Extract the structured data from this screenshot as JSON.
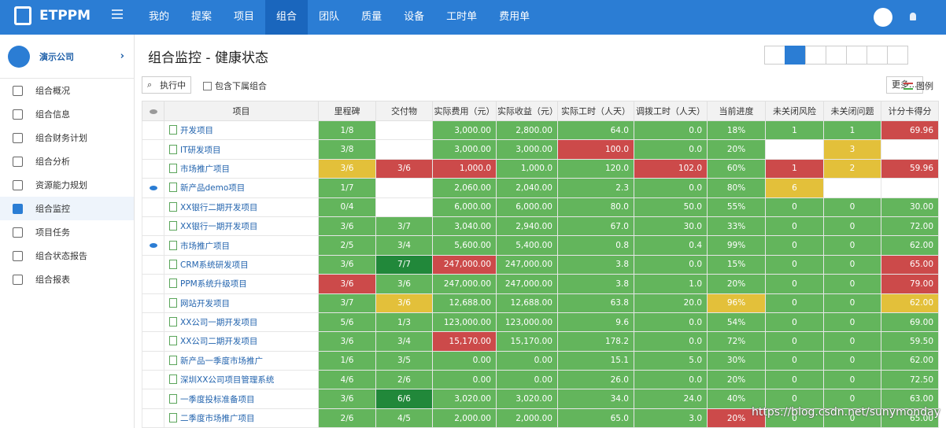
{
  "nav": {
    "logo": "ETPPM",
    "menu": [
      "我的",
      "提案",
      "项目",
      "组合",
      "团队",
      "质量",
      "设备",
      "工时单",
      "费用单"
    ],
    "active": 3
  },
  "sidebar": {
    "company": "演示公司",
    "items": [
      "组合概况",
      "组合信息",
      "组合财务计划",
      "组合分析",
      "资源能力规划",
      "组合监控",
      "项目任务",
      "组合状态报告",
      "组合报表"
    ],
    "active": 5
  },
  "page": {
    "title": "组合监控 - 健康状态",
    "filter": "执行中",
    "include_sub": "包含下属组合",
    "more": "更多...",
    "legend": "图例"
  },
  "table": {
    "headers": [
      "项目",
      "里程碑",
      "交付物",
      "实际费用（元）",
      "实际收益（元）",
      "实际工时（人天）",
      "调拨工时（人天）",
      "当前进度",
      "未关闭风险",
      "未关闭问题",
      "计分卡得分"
    ],
    "palette": {
      "g": "#63b55c",
      "d": "#21883a",
      "r": "#cc4a4a",
      "y": "#e3c03a",
      "w": "#ffffff"
    },
    "rows": [
      {
        "project": "开发项目",
        "cells": [
          "1/8",
          null,
          "3,000.00",
          "2,800.00",
          "64.0",
          "0.0",
          "18%",
          "1",
          "1",
          "69.96"
        ],
        "colors": [
          "g",
          "w",
          "g",
          "g",
          "g",
          "g",
          "g",
          "g",
          "g",
          "r"
        ]
      },
      {
        "project": "IT研发项目",
        "cells": [
          "3/8",
          null,
          "3,000.00",
          "3,000.00",
          "100.0",
          "0.0",
          "20%",
          null,
          "3",
          null
        ],
        "colors": [
          "g",
          "w",
          "g",
          "g",
          "r",
          "g",
          "g",
          "w",
          "y",
          "w"
        ]
      },
      {
        "project": "市场推广项目",
        "cells": [
          "3/6",
          "3/6",
          "1,000.0",
          "1,000.0",
          "120.0",
          "102.0",
          "60%",
          "1",
          "2",
          "59.96"
        ],
        "colors": [
          "y",
          "r",
          "r",
          "g",
          "g",
          "r",
          "g",
          "r",
          "y",
          "r"
        ]
      },
      {
        "project": "新产品demo项目",
        "watched": true,
        "cells": [
          "1/7",
          null,
          "2,060.00",
          "2,040.00",
          "2.3",
          "0.0",
          "80%",
          "6",
          null,
          null
        ],
        "colors": [
          "g",
          "w",
          "g",
          "g",
          "g",
          "g",
          "g",
          "y",
          "w",
          "w"
        ]
      },
      {
        "project": "XX银行二期开发项目",
        "cells": [
          "0/4",
          null,
          "6,000.00",
          "6,000.00",
          "80.0",
          "50.0",
          "55%",
          "0",
          "0",
          "30.00"
        ],
        "colors": [
          "g",
          "w",
          "g",
          "g",
          "g",
          "g",
          "g",
          "g",
          "g",
          "g"
        ]
      },
      {
        "project": "XX银行一期开发项目",
        "cells": [
          "3/6",
          "3/7",
          "3,040.00",
          "2,940.00",
          "67.0",
          "30.0",
          "33%",
          "0",
          "0",
          "72.00"
        ],
        "colors": [
          "g",
          "g",
          "g",
          "g",
          "g",
          "g",
          "g",
          "g",
          "g",
          "g"
        ]
      },
      {
        "project": "市场推广项目",
        "watched": true,
        "cells": [
          "2/5",
          "3/4",
          "5,600.00",
          "5,400.00",
          "0.8",
          "0.4",
          "99%",
          "0",
          "0",
          "62.00"
        ],
        "colors": [
          "g",
          "g",
          "g",
          "g",
          "g",
          "g",
          "g",
          "g",
          "g",
          "g"
        ]
      },
      {
        "project": "CRM系统研发项目",
        "cells": [
          "3/6",
          "7/7",
          "247,000.00",
          "247,000.00",
          "3.8",
          "0.0",
          "15%",
          "0",
          "0",
          "65.00"
        ],
        "colors": [
          "g",
          "d",
          "r",
          "g",
          "g",
          "g",
          "g",
          "g",
          "g",
          "r"
        ]
      },
      {
        "project": "PPM系统升级项目",
        "cells": [
          "3/6",
          "3/6",
          "247,000.00",
          "247,000.00",
          "3.8",
          "1.0",
          "20%",
          "0",
          "0",
          "79.00"
        ],
        "colors": [
          "r",
          "g",
          "g",
          "g",
          "g",
          "g",
          "g",
          "g",
          "g",
          "r"
        ]
      },
      {
        "project": "网站开发项目",
        "cells": [
          "3/7",
          "3/6",
          "12,688.00",
          "12,688.00",
          "63.8",
          "20.0",
          "96%",
          "0",
          "0",
          "62.00"
        ],
        "colors": [
          "g",
          "y",
          "g",
          "g",
          "g",
          "g",
          "y",
          "g",
          "g",
          "y"
        ]
      },
      {
        "project": "XX公司一期开发项目",
        "cells": [
          "5/6",
          "1/3",
          "123,000.00",
          "123,000.00",
          "9.6",
          "0.0",
          "54%",
          "0",
          "0",
          "69.00"
        ],
        "colors": [
          "g",
          "g",
          "g",
          "g",
          "g",
          "g",
          "g",
          "g",
          "g",
          "g"
        ]
      },
      {
        "project": "XX公司二期开发项目",
        "cells": [
          "3/6",
          "3/4",
          "15,170.00",
          "15,170.00",
          "178.2",
          "0.0",
          "72%",
          "0",
          "0",
          "59.50"
        ],
        "colors": [
          "g",
          "g",
          "r",
          "g",
          "g",
          "g",
          "g",
          "g",
          "g",
          "g"
        ]
      },
      {
        "project": "新产品一季度市场推广",
        "cells": [
          "1/6",
          "3/5",
          "0.00",
          "0.00",
          "15.1",
          "5.0",
          "30%",
          "0",
          "0",
          "62.00"
        ],
        "colors": [
          "g",
          "g",
          "g",
          "g",
          "g",
          "g",
          "g",
          "g",
          "g",
          "g"
        ]
      },
      {
        "project": "深圳XX公司项目管理系统",
        "cells": [
          "4/6",
          "2/6",
          "0.00",
          "0.00",
          "26.0",
          "0.0",
          "20%",
          "0",
          "0",
          "72.50"
        ],
        "colors": [
          "g",
          "g",
          "g",
          "g",
          "g",
          "g",
          "g",
          "g",
          "g",
          "g"
        ]
      },
      {
        "project": "一季度投标准备项目",
        "cells": [
          "3/6",
          "6/6",
          "3,020.00",
          "3,020.00",
          "34.0",
          "24.0",
          "40%",
          "0",
          "0",
          "63.00"
        ],
        "colors": [
          "g",
          "d",
          "g",
          "g",
          "g",
          "g",
          "g",
          "g",
          "g",
          "g"
        ]
      },
      {
        "project": "二季度市场推广项目",
        "cells": [
          "2/6",
          "4/5",
          "2,000.00",
          "2,000.00",
          "65.0",
          "3.0",
          "20%",
          "0",
          "0",
          "65.00"
        ],
        "colors": [
          "g",
          "g",
          "g",
          "g",
          "g",
          "g",
          "r",
          "g",
          "g",
          "g"
        ]
      }
    ]
  },
  "watermark": "https://blog.csdn.net/sunymonday"
}
